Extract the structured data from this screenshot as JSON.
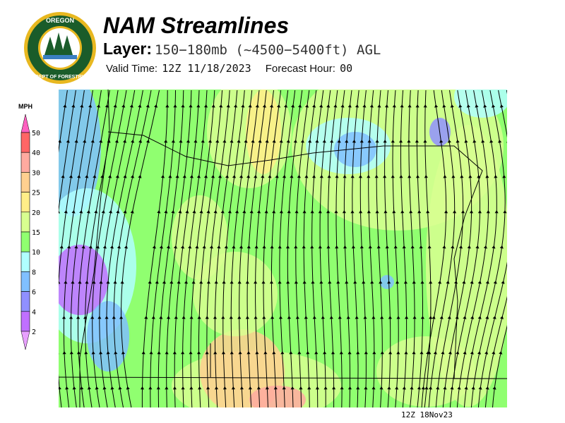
{
  "header": {
    "title": "NAM Streamlines",
    "layer_label": "Layer:",
    "layer_value": "150−180mb (~4500−5400ft) AGL",
    "valid_label": "Valid Time:",
    "valid_value": "12Z 11/18/2023",
    "forecast_label": "Forecast Hour:",
    "forecast_value": "00"
  },
  "logo": {
    "text": "OREGON DEPARTMENT OF FORESTRY",
    "colors": {
      "ring": "#1a5c2a",
      "gold": "#e8b820"
    }
  },
  "legend": {
    "unit": "MPH",
    "labels": [
      "50",
      "40",
      "30",
      "25",
      "20",
      "15",
      "10",
      "8",
      "6",
      "4",
      "2"
    ],
    "colors": [
      "#ff6666",
      "#ffaaa0",
      "#ffd090",
      "#ffee88",
      "#d8ff90",
      "#90ff70",
      "#b0ffff",
      "#80c0ff",
      "#9090ff",
      "#c070ff"
    ],
    "over_color": "#ff60c0",
    "under_color": "#e8a0ff"
  },
  "map": {
    "background": "#90ff70",
    "stamp": "12Z 18Nov23"
  }
}
